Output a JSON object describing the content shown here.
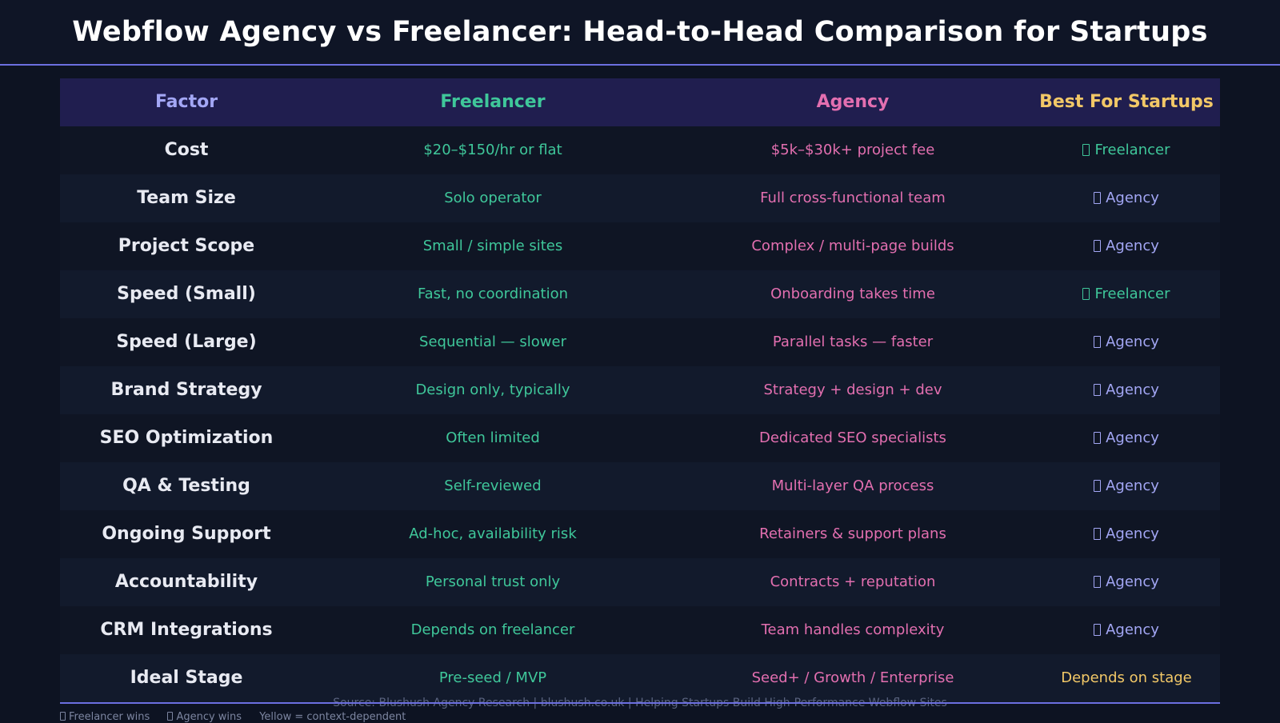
{
  "title": "Webflow Agency vs Freelancer: Head-to-Head Comparison for Startups",
  "colors": {
    "factor_header": "#a3a7f5",
    "freelancer": "#3fc79a",
    "agency": "#e36fb0",
    "best_header": "#f2c867",
    "context": "#f2c867",
    "accent_line": "#6c6fe0"
  },
  "chart_data": {
    "type": "table",
    "columns": [
      "Factor",
      "Freelancer",
      "Agency",
      "Best For Startups"
    ],
    "rows": [
      {
        "factor": "Cost",
        "freelancer": "$20–$150/hr or flat",
        "agency": "$5k–$30k+ project fee",
        "best": "Freelancer",
        "winner": "freelancer",
        "icon": "box-glyph"
      },
      {
        "factor": "Team Size",
        "freelancer": "Solo operator",
        "agency": "Full cross-functional team",
        "best": "Agency",
        "winner": "agency",
        "icon": "box-glyph"
      },
      {
        "factor": "Project Scope",
        "freelancer": "Small / simple sites",
        "agency": "Complex / multi-page builds",
        "best": "Agency",
        "winner": "agency",
        "icon": "box-glyph"
      },
      {
        "factor": "Speed (Small)",
        "freelancer": "Fast, no coordination",
        "agency": "Onboarding takes time",
        "best": "Freelancer",
        "winner": "freelancer",
        "icon": "box-glyph"
      },
      {
        "factor": "Speed (Large)",
        "freelancer": "Sequential — slower",
        "agency": "Parallel tasks — faster",
        "best": "Agency",
        "winner": "agency",
        "icon": "box-glyph"
      },
      {
        "factor": "Brand Strategy",
        "freelancer": "Design only, typically",
        "agency": "Strategy + design + dev",
        "best": "Agency",
        "winner": "agency",
        "icon": "box-glyph"
      },
      {
        "factor": "SEO Optimization",
        "freelancer": "Often limited",
        "agency": "Dedicated SEO specialists",
        "best": "Agency",
        "winner": "agency",
        "icon": "box-glyph"
      },
      {
        "factor": "QA & Testing",
        "freelancer": "Self-reviewed",
        "agency": "Multi-layer QA process",
        "best": "Agency",
        "winner": "agency",
        "icon": "box-glyph"
      },
      {
        "factor": "Ongoing Support",
        "freelancer": "Ad-hoc, availability risk",
        "agency": "Retainers & support plans",
        "best": "Agency",
        "winner": "agency",
        "icon": "box-glyph"
      },
      {
        "factor": "Accountability",
        "freelancer": "Personal trust only",
        "agency": "Contracts + reputation",
        "best": "Agency",
        "winner": "agency",
        "icon": "box-glyph"
      },
      {
        "factor": "CRM Integrations",
        "freelancer": "Depends on freelancer",
        "agency": "Team handles complexity",
        "best": "Agency",
        "winner": "agency",
        "icon": "box-glyph"
      },
      {
        "factor": "Ideal Stage",
        "freelancer": "Pre-seed / MVP",
        "agency": "Seed+ / Growth / Enterprise",
        "best": "Depends on stage",
        "winner": "context",
        "icon": ""
      }
    ]
  },
  "footer": {
    "source": "Source: Blushush Agency Research  |  blushush.co.uk  |  Helping Startups Build High-Performance Webflow Sites",
    "legend": {
      "freelancer": "Freelancer wins",
      "agency": "Agency wins",
      "context": "Yellow = context-dependent"
    }
  }
}
